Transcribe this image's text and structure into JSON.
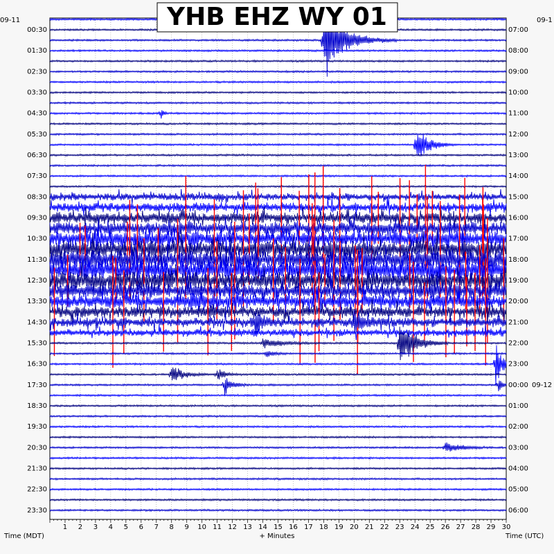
{
  "chart_data": {
    "type": "line",
    "title": "YHB EHZ WY 01",
    "left_date": "09-11",
    "right_date_start": "09-1",
    "right_date_next": "09-12",
    "xlabel": "+ Minutes",
    "left_axis_label": "Time (MDT)",
    "right_axis_label": "Time (UTC)",
    "x_ticks": [
      1,
      2,
      3,
      4,
      5,
      6,
      7,
      8,
      9,
      10,
      11,
      12,
      13,
      14,
      15,
      16,
      17,
      18,
      19,
      20,
      21,
      22,
      23,
      24,
      25,
      26,
      27,
      28,
      29,
      30
    ],
    "xlim": [
      0,
      30
    ],
    "line_colors": [
      "#0000ff",
      "#000080",
      "#0000cd",
      "#ff0000"
    ],
    "rows": [
      {
        "left": "00:30",
        "right": "07:00"
      },
      {
        "left": "01:30",
        "right": "08:00"
      },
      {
        "left": "02:30",
        "right": "09:00"
      },
      {
        "left": "03:30",
        "right": "10:00"
      },
      {
        "left": "04:30",
        "right": "11:00"
      },
      {
        "left": "05:30",
        "right": "12:00"
      },
      {
        "left": "06:30",
        "right": "13:00"
      },
      {
        "left": "07:30",
        "right": "14:00"
      },
      {
        "left": "08:30",
        "right": "15:00"
      },
      {
        "left": "09:30",
        "right": "16:00"
      },
      {
        "left": "10:30",
        "right": "17:00"
      },
      {
        "left": "11:30",
        "right": "18:00"
      },
      {
        "left": "12:30",
        "right": "19:00"
      },
      {
        "left": "13:30",
        "right": "20:00"
      },
      {
        "left": "14:30",
        "right": "21:00"
      },
      {
        "left": "15:30",
        "right": "22:00"
      },
      {
        "left": "16:30",
        "right": "23:00"
      },
      {
        "left": "17:30",
        "right": "00:00"
      },
      {
        "left": "18:30",
        "right": "01:00"
      },
      {
        "left": "19:30",
        "right": "02:00"
      },
      {
        "left": "20:30",
        "right": "03:00"
      },
      {
        "left": "21:30",
        "right": "04:00"
      },
      {
        "left": "22:30",
        "right": "05:00"
      },
      {
        "left": "23:30",
        "right": "06:00"
      }
    ],
    "events": [
      {
        "trace": 2,
        "minute": 18.0,
        "amplitude": 3.0,
        "duration_min": 3.0
      },
      {
        "trace": 2,
        "minute": 18.2,
        "amplitude": 1.6,
        "duration_min": 1.0
      },
      {
        "trace": 9,
        "minute": 7.3,
        "amplitude": 0.8,
        "duration_min": 0.3
      },
      {
        "trace": 12,
        "minute": 24.1,
        "amplitude": 2.2,
        "duration_min": 1.5
      },
      {
        "trace": 27,
        "minute": 9.2,
        "amplitude": 0.6,
        "duration_min": 1.5
      },
      {
        "trace": 28,
        "minute": 10.3,
        "amplitude": 0.6,
        "duration_min": 1.0
      },
      {
        "trace": 29,
        "minute": 13.5,
        "amplitude": 1.2,
        "duration_min": 1.0
      },
      {
        "trace": 29,
        "minute": 20.0,
        "amplitude": 1.3,
        "duration_min": 1.2
      },
      {
        "trace": 31,
        "minute": 14.0,
        "amplitude": 0.6,
        "duration_min": 2.5
      },
      {
        "trace": 31,
        "minute": 23.0,
        "amplitude": 2.6,
        "duration_min": 2.0
      },
      {
        "trace": 32,
        "minute": 14.2,
        "amplitude": 0.4,
        "duration_min": 1.0
      },
      {
        "trace": 33,
        "minute": 29.3,
        "amplitude": 2.2,
        "duration_min": 1.0
      },
      {
        "trace": 34,
        "minute": 8.0,
        "amplitude": 1.0,
        "duration_min": 1.5
      },
      {
        "trace": 34,
        "minute": 11.0,
        "amplitude": 0.7,
        "duration_min": 1.0
      },
      {
        "trace": 35,
        "minute": 11.5,
        "amplitude": 1.0,
        "duration_min": 1.0
      },
      {
        "trace": 35,
        "minute": 29.5,
        "amplitude": 0.8,
        "duration_min": 0.5
      },
      {
        "trace": 41,
        "minute": 26.0,
        "amplitude": 0.6,
        "duration_min": 2.0
      }
    ],
    "noisy_span": {
      "first_trace": 17,
      "last_trace": 30
    }
  }
}
